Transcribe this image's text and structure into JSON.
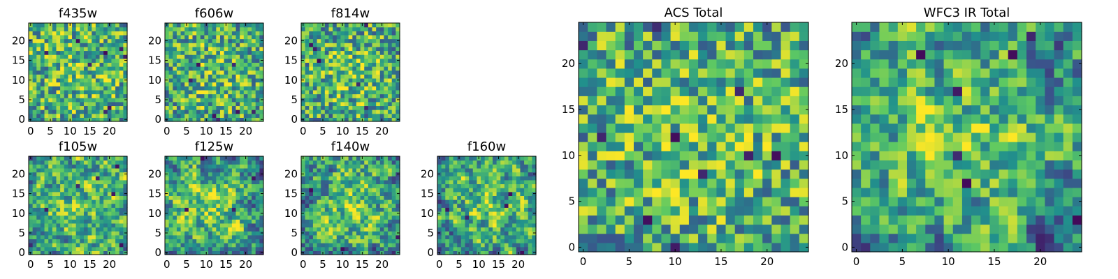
{
  "figure": {
    "description_colormap": "viridis",
    "colormap_colors": [
      "#440154",
      "#3b528b",
      "#21918c",
      "#5ec962",
      "#fde725"
    ]
  },
  "chart_data": [
    {
      "type": "heatmap",
      "title": "f435w",
      "grid_size": 25,
      "xlim": [
        0,
        24
      ],
      "ylim": [
        0,
        24
      ],
      "xticks": [
        "0",
        "5",
        "10",
        "15",
        "20"
      ],
      "yticks": [
        "0",
        "5",
        "10",
        "15",
        "20"
      ],
      "seed": 11,
      "smooth": 0,
      "center_boost": 0.15,
      "dark_spots": 8
    },
    {
      "type": "heatmap",
      "title": "f606w",
      "grid_size": 25,
      "xlim": [
        0,
        24
      ],
      "ylim": [
        0,
        24
      ],
      "xticks": [
        "0",
        "5",
        "10",
        "15",
        "20"
      ],
      "yticks": [
        "0",
        "5",
        "10",
        "15",
        "20"
      ],
      "seed": 23,
      "smooth": 0,
      "center_boost": 0.2,
      "dark_spots": 7
    },
    {
      "type": "heatmap",
      "title": "f814w",
      "grid_size": 25,
      "xlim": [
        0,
        24
      ],
      "ylim": [
        0,
        24
      ],
      "xticks": [
        "0",
        "5",
        "10",
        "15",
        "20"
      ],
      "yticks": [
        "0",
        "5",
        "10",
        "15",
        "20"
      ],
      "seed": 37,
      "smooth": 0,
      "center_boost": 0.25,
      "dark_spots": 6
    },
    {
      "type": "heatmap",
      "title": "f105w",
      "grid_size": 25,
      "xlim": [
        0,
        24
      ],
      "ylim": [
        0,
        24
      ],
      "xticks": [
        "0",
        "5",
        "10",
        "15",
        "20"
      ],
      "yticks": [
        "0",
        "5",
        "10",
        "15",
        "20"
      ],
      "seed": 41,
      "smooth": 1,
      "center_boost": 0.35,
      "dark_spots": 6
    },
    {
      "type": "heatmap",
      "title": "f125w",
      "grid_size": 25,
      "xlim": [
        0,
        24
      ],
      "ylim": [
        0,
        24
      ],
      "xticks": [
        "0",
        "5",
        "10",
        "15",
        "20"
      ],
      "yticks": [
        "0",
        "5",
        "10",
        "15",
        "20"
      ],
      "seed": 53,
      "smooth": 1,
      "center_boost": 0.4,
      "dark_spots": 4
    },
    {
      "type": "heatmap",
      "title": "f140w",
      "grid_size": 25,
      "xlim": [
        0,
        24
      ],
      "ylim": [
        0,
        24
      ],
      "xticks": [
        "0",
        "5",
        "10",
        "15",
        "20"
      ],
      "yticks": [
        "0",
        "5",
        "10",
        "15",
        "20"
      ],
      "seed": 67,
      "smooth": 1,
      "center_boost": 0.45,
      "dark_spots": 3
    },
    {
      "type": "heatmap",
      "title": "f160w",
      "grid_size": 25,
      "xlim": [
        0,
        24
      ],
      "ylim": [
        0,
        24
      ],
      "xticks": [
        "0",
        "5",
        "10",
        "15",
        "20"
      ],
      "yticks": [
        "0",
        "5",
        "10",
        "15",
        "20"
      ],
      "seed": 79,
      "smooth": 1,
      "center_boost": 0.45,
      "dark_spots": 4
    },
    {
      "type": "heatmap",
      "title": "ACS Total",
      "grid_size": 25,
      "xlim": [
        0,
        24
      ],
      "ylim": [
        0,
        24
      ],
      "xticks": [
        "0",
        "5",
        "10",
        "15",
        "20"
      ],
      "yticks": [
        "0",
        "5",
        "10",
        "15",
        "20"
      ],
      "seed": 97,
      "smooth": 0,
      "center_boost": 0.2,
      "dark_spots": 10
    },
    {
      "type": "heatmap",
      "title": "WFC3 IR Total",
      "grid_size": 25,
      "xlim": [
        0,
        24
      ],
      "ylim": [
        0,
        24
      ],
      "xticks": [
        "0",
        "5",
        "10",
        "15",
        "20"
      ],
      "yticks": [
        "0",
        "5",
        "10",
        "15",
        "20"
      ],
      "seed": 131,
      "smooth": 1,
      "center_boost": 0.5,
      "dark_spots": 7
    }
  ]
}
